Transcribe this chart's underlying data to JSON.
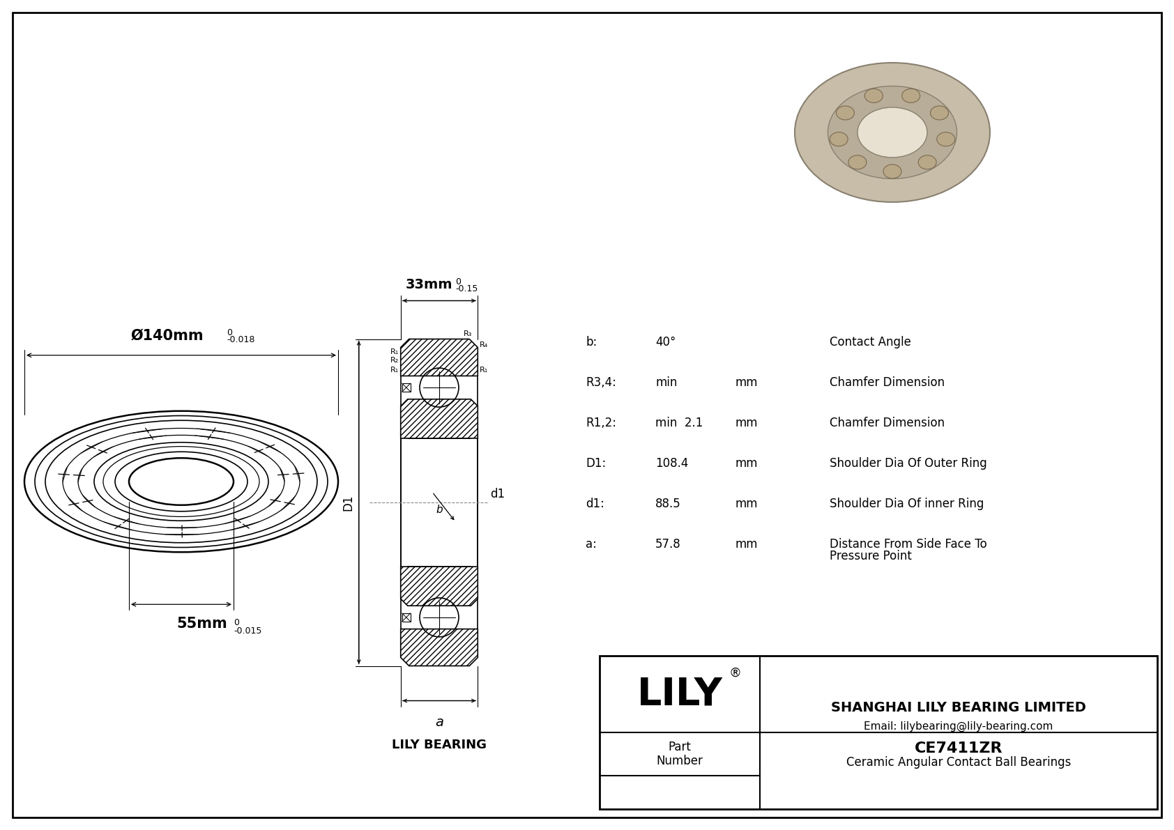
{
  "bg_color": "#ffffff",
  "line_color": "#000000",
  "title_company": "SHANGHAI LILY BEARING LIMITED",
  "title_email": "Email: lilybearing@lily-bearing.com",
  "part_number": "CE7411ZR",
  "part_type": "Ceramic Angular Contact Ball Bearings",
  "brand": "LILY",
  "brand_label": "LILY BEARING",
  "outer_dia_label": "Ø140mm",
  "outer_dia_tol_top": "0",
  "outer_dia_tol_bot": "-0.018",
  "width_label": "33mm",
  "width_tol_top": "0",
  "width_tol_bot": "-0.15",
  "inner_dia_label": "55mm",
  "inner_dia_tol_top": "0",
  "inner_dia_tol_bot": "-0.015",
  "specs": [
    {
      "param": "b:",
      "value": "40°",
      "unit": "",
      "desc": "Contact Angle"
    },
    {
      "param": "R3,4:",
      "value": "min",
      "unit": "mm",
      "desc": "Chamfer Dimension"
    },
    {
      "param": "R1,2:",
      "value": "min  2.1",
      "unit": "mm",
      "desc": "Chamfer Dimension"
    },
    {
      "param": "D1:",
      "value": "108.4",
      "unit": "mm",
      "desc": "Shoulder Dia Of Outer Ring"
    },
    {
      "param": "d1:",
      "value": "88.5",
      "unit": "mm",
      "desc": "Shoulder Dia Of inner Ring"
    },
    {
      "param": "a:",
      "value": "57.8",
      "unit": "mm",
      "desc": "Distance From Side Face To\nPressure Point"
    }
  ]
}
